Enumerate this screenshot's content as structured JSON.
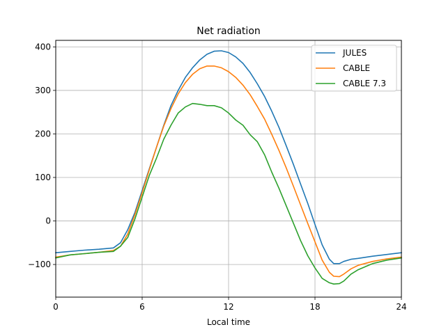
{
  "chart_data": {
    "type": "line",
    "title": "Net radiation",
    "xlabel": "Local time",
    "ylabel": "",
    "xlim": [
      0,
      24
    ],
    "ylim": [
      -175,
      415
    ],
    "xticks": [
      0,
      6,
      12,
      18,
      24
    ],
    "yticks": [
      -100,
      0,
      100,
      200,
      300,
      400
    ],
    "grid": true,
    "legend_position": "top-right",
    "series": [
      {
        "name": "JULES",
        "color": "#1f77b4",
        "x": [
          0,
          1,
          2,
          3,
          4,
          4.5,
          5,
          5.5,
          6,
          6.5,
          7,
          7.5,
          8,
          8.5,
          9,
          9.5,
          10,
          10.5,
          11,
          11.5,
          12,
          12.5,
          13,
          13.5,
          14,
          14.5,
          15,
          15.5,
          16,
          16.5,
          17,
          17.5,
          18,
          18.5,
          19,
          19.3,
          19.7,
          20,
          20.5,
          21,
          22,
          23,
          24
        ],
        "y": [
          -73,
          -70,
          -67,
          -65,
          -62,
          -50,
          -20,
          20,
          70,
          120,
          170,
          220,
          265,
          300,
          330,
          352,
          370,
          383,
          390,
          391,
          387,
          377,
          362,
          341,
          315,
          286,
          252,
          215,
          173,
          130,
          85,
          40,
          -8,
          -55,
          -88,
          -98,
          -98,
          -93,
          -88,
          -86,
          -81,
          -77,
          -73
        ]
      },
      {
        "name": "CABLE",
        "color": "#ff7f0e",
        "x": [
          0,
          1,
          2,
          3,
          4,
          4.5,
          5,
          5.5,
          6,
          6.5,
          7,
          7.5,
          8,
          8.5,
          9,
          9.5,
          10,
          10.5,
          11,
          11.5,
          12,
          12.5,
          13,
          13.5,
          14,
          14.5,
          15,
          15.5,
          16,
          16.5,
          17,
          17.5,
          18,
          18.5,
          19,
          19.3,
          19.7,
          20,
          20.5,
          21,
          22,
          23,
          24
        ],
        "y": [
          -83,
          -78,
          -75,
          -72,
          -68,
          -58,
          -30,
          15,
          65,
          118,
          170,
          218,
          258,
          292,
          318,
          337,
          350,
          356,
          356,
          352,
          343,
          330,
          312,
          290,
          263,
          234,
          199,
          162,
          122,
          80,
          37,
          -6,
          -48,
          -90,
          -118,
          -127,
          -128,
          -122,
          -110,
          -102,
          -93,
          -87,
          -83
        ]
      },
      {
        "name": "CABLE 7.3",
        "color": "#2ca02c",
        "x": [
          0,
          1,
          2,
          3,
          4,
          4.5,
          5,
          5.5,
          6,
          6.5,
          7,
          7.5,
          8,
          8.5,
          9,
          9.5,
          10,
          10.5,
          11,
          11.5,
          12,
          12.5,
          13,
          13.5,
          14,
          14.5,
          15,
          15.5,
          16,
          16.5,
          17,
          17.5,
          18,
          18.5,
          19,
          19.3,
          19.7,
          20,
          20.5,
          21,
          22,
          23,
          24
        ],
        "y": [
          -85,
          -78,
          -75,
          -72,
          -70,
          -58,
          -38,
          5,
          55,
          105,
          145,
          188,
          220,
          248,
          262,
          270,
          268,
          265,
          265,
          260,
          248,
          232,
          220,
          198,
          182,
          152,
          112,
          75,
          35,
          -5,
          -45,
          -80,
          -108,
          -132,
          -142,
          -145,
          -144,
          -138,
          -122,
          -112,
          -98,
          -90,
          -85
        ]
      }
    ]
  }
}
